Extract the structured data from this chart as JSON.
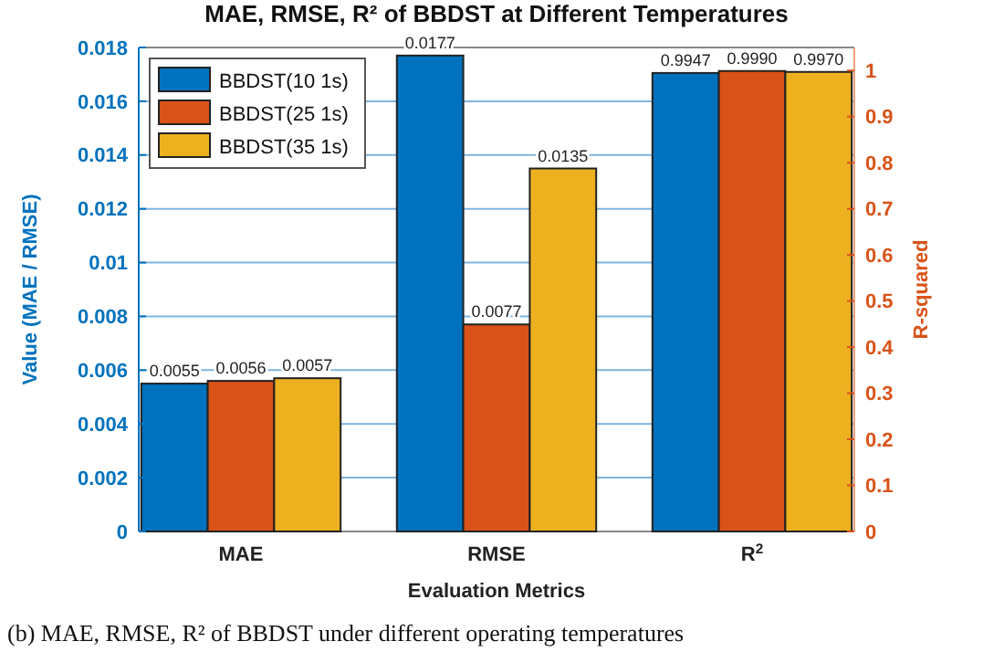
{
  "chart_data": {
    "type": "bar",
    "title": "MAE, RMSE, R² of BBDST at Different Temperatures",
    "xlabel": "Evaluation Metrics",
    "ylabel": "Value (MAE / RMSE)",
    "y2label": "R-squared",
    "categories": [
      "MAE",
      "RMSE",
      "R$^{2}$"
    ],
    "series": [
      {
        "name": "BBDST(10 1s)",
        "color": "#0072bd",
        "values": [
          0.0055,
          0.0177,
          null
        ],
        "value_labels": [
          "0.0055",
          "0.0177",
          null
        ]
      },
      {
        "name": "BBDST(25 1s)",
        "color": "#d95319",
        "values": [
          0.0056,
          0.0077,
          null
        ],
        "value_labels": [
          "0.0056",
          "0.0077",
          null
        ]
      },
      {
        "name": "BBDST(35 1s)",
        "color": "#edb120",
        "values": [
          0.0057,
          0.0135,
          null
        ],
        "value_labels": [
          "0.0057",
          "0.0135",
          null
        ]
      },
      {
        "color": "#0072bd",
        "axis": "y2",
        "values": [
          null,
          null,
          0.9947
        ],
        "value_labels": [
          null,
          null,
          "0.9947"
        ]
      },
      {
        "color": "#d95319",
        "axis": "y2",
        "values": [
          null,
          null,
          0.999
        ],
        "value_labels": [
          null,
          null,
          "0.9990"
        ]
      },
      {
        "color": "#edb120",
        "axis": "y2",
        "values": [
          null,
          null,
          0.997
        ],
        "value_labels": [
          null,
          null,
          "0.9970"
        ]
      }
    ],
    "ylim": [
      0,
      0.018
    ],
    "yticks": [
      0,
      0.002,
      0.004,
      0.006,
      0.008,
      0.01,
      0.012,
      0.014,
      0.016,
      0.018
    ],
    "y2lim": [
      0,
      1.05
    ],
    "y2ticks": [
      0,
      0.1,
      0.2,
      0.3,
      0.4,
      0.5,
      0.6,
      0.7,
      0.8,
      0.9,
      1
    ],
    "grid": "y",
    "legend": "top left",
    "annotations": [
      "(b) MAE, RMSE, R² of BBDST under different operating temperatures"
    ]
  }
}
